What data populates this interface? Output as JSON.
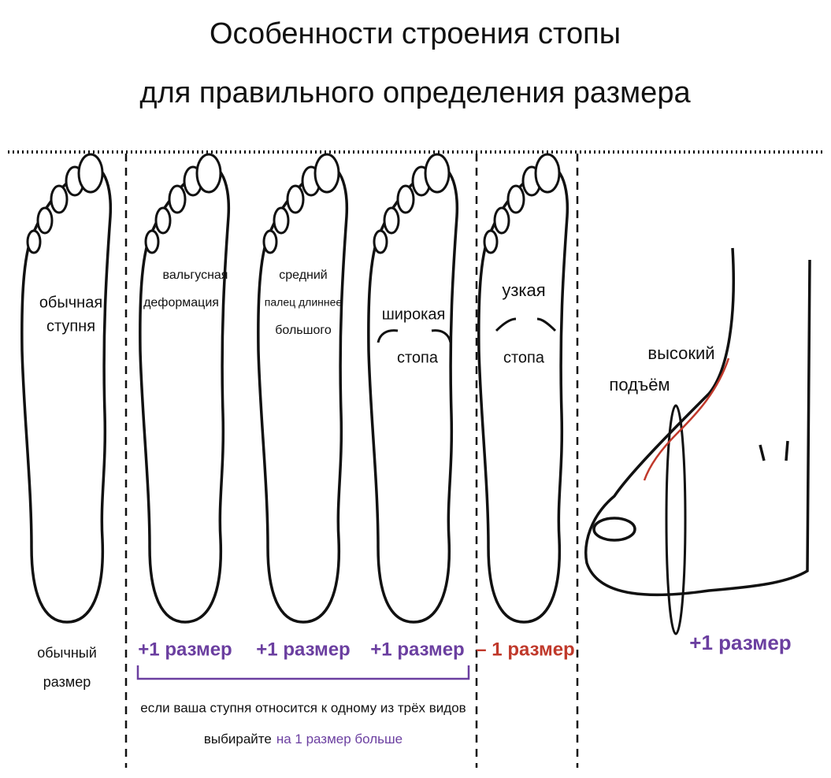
{
  "title": [
    "Особенности строения стопы",
    "для правильного определения размера"
  ],
  "feet": [
    {
      "label": [
        "обычная",
        "ступня"
      ],
      "size": [
        "обычный",
        "размер"
      ]
    },
    {
      "label": [
        "вальгусная",
        "деформация"
      ],
      "size": [
        "+1 размер"
      ]
    },
    {
      "label": [
        "средний",
        "палец длиннее",
        "большого"
      ],
      "size": [
        "+1 размер"
      ]
    },
    {
      "label": [
        "широкая",
        "стопа"
      ],
      "size": [
        "+1 размер"
      ]
    },
    {
      "label": [
        "узкая",
        "стопа"
      ],
      "size": [
        "– 1 размер"
      ]
    }
  ],
  "high_instep": {
    "label": [
      "высокий",
      "подъём"
    ],
    "size": "+1 размер"
  },
  "note": {
    "line1": "если ваша ступня относится к одному из трёх видов",
    "line2_prefix": "выбирайте",
    "line2_highlight": "на 1 размер больше"
  }
}
